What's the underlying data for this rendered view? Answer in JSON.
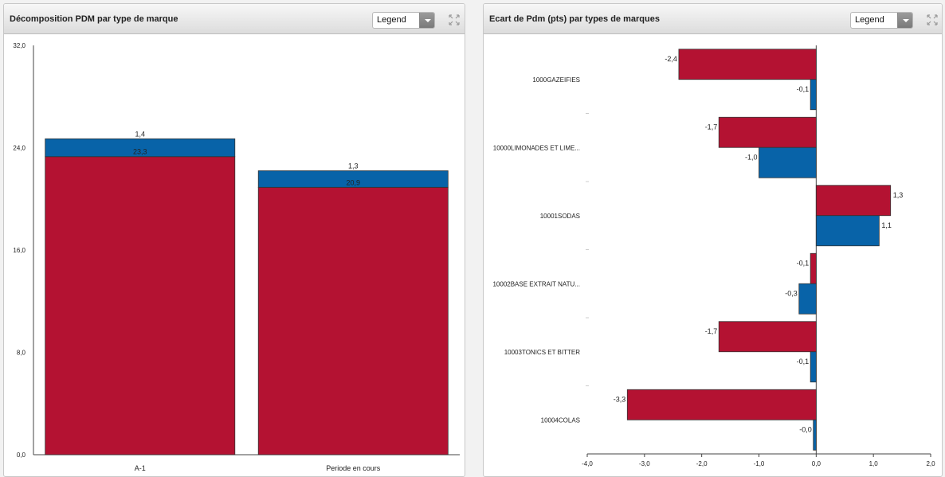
{
  "left_panel": {
    "title": "Décomposition PDM par type de marque",
    "legend_label": "Legend"
  },
  "right_panel": {
    "title": "Ecart de Pdm (pts) par types de marques",
    "legend_label": "Legend"
  },
  "colors": {
    "red": "#b41232",
    "blue": "#0863a8"
  },
  "chart_data": [
    {
      "type": "bar",
      "stacked": true,
      "orientation": "vertical",
      "categories": [
        "A-1",
        "Periode en cours"
      ],
      "series": [
        {
          "values": [
            23.3,
            20.9
          ],
          "labels": [
            "23,3",
            "20,9"
          ],
          "color": "#b41232"
        },
        {
          "values": [
            1.4,
            1.3
          ],
          "labels": [
            "1,4",
            "1,3"
          ],
          "color": "#0863a8"
        }
      ],
      "y_ticks": [
        0,
        8,
        16,
        24,
        32
      ],
      "y_tick_labels": [
        "0,0",
        "8,0",
        "16,0",
        "24,0",
        "32,0"
      ],
      "ylim": [
        0,
        32
      ]
    },
    {
      "type": "bar",
      "orientation": "horizontal",
      "categories": [
        "1000GAZEIFIES",
        "10000LIMONADES ET LIME...",
        "10001SODAS",
        "10002BASE EXTRAIT NATU...",
        "10003TONICS ET BITTER",
        "10004COLAS"
      ],
      "series": [
        {
          "values": [
            -2.4,
            -1.7,
            1.3,
            -0.1,
            -1.7,
            -3.3
          ],
          "labels": [
            "-2,4",
            "-1,7",
            "1,3",
            "-0,1",
            "-1,7",
            "-3,3"
          ],
          "color": "#b41232"
        },
        {
          "values": [
            -0.1,
            -1.0,
            1.1,
            -0.3,
            -0.1,
            -0.05
          ],
          "labels": [
            "-0,1",
            "-1,0",
            "1,1",
            "-0,3",
            "-0,1",
            "-0,0"
          ],
          "color": "#0863a8"
        }
      ],
      "x_ticks": [
        -4,
        -3,
        -2,
        -1,
        0,
        1,
        2
      ],
      "x_tick_labels": [
        "-4,0",
        "-3,0",
        "-2,0",
        "-1,0",
        "0,0",
        "1,0",
        "2,0"
      ],
      "xlim": [
        -4,
        2
      ]
    }
  ]
}
